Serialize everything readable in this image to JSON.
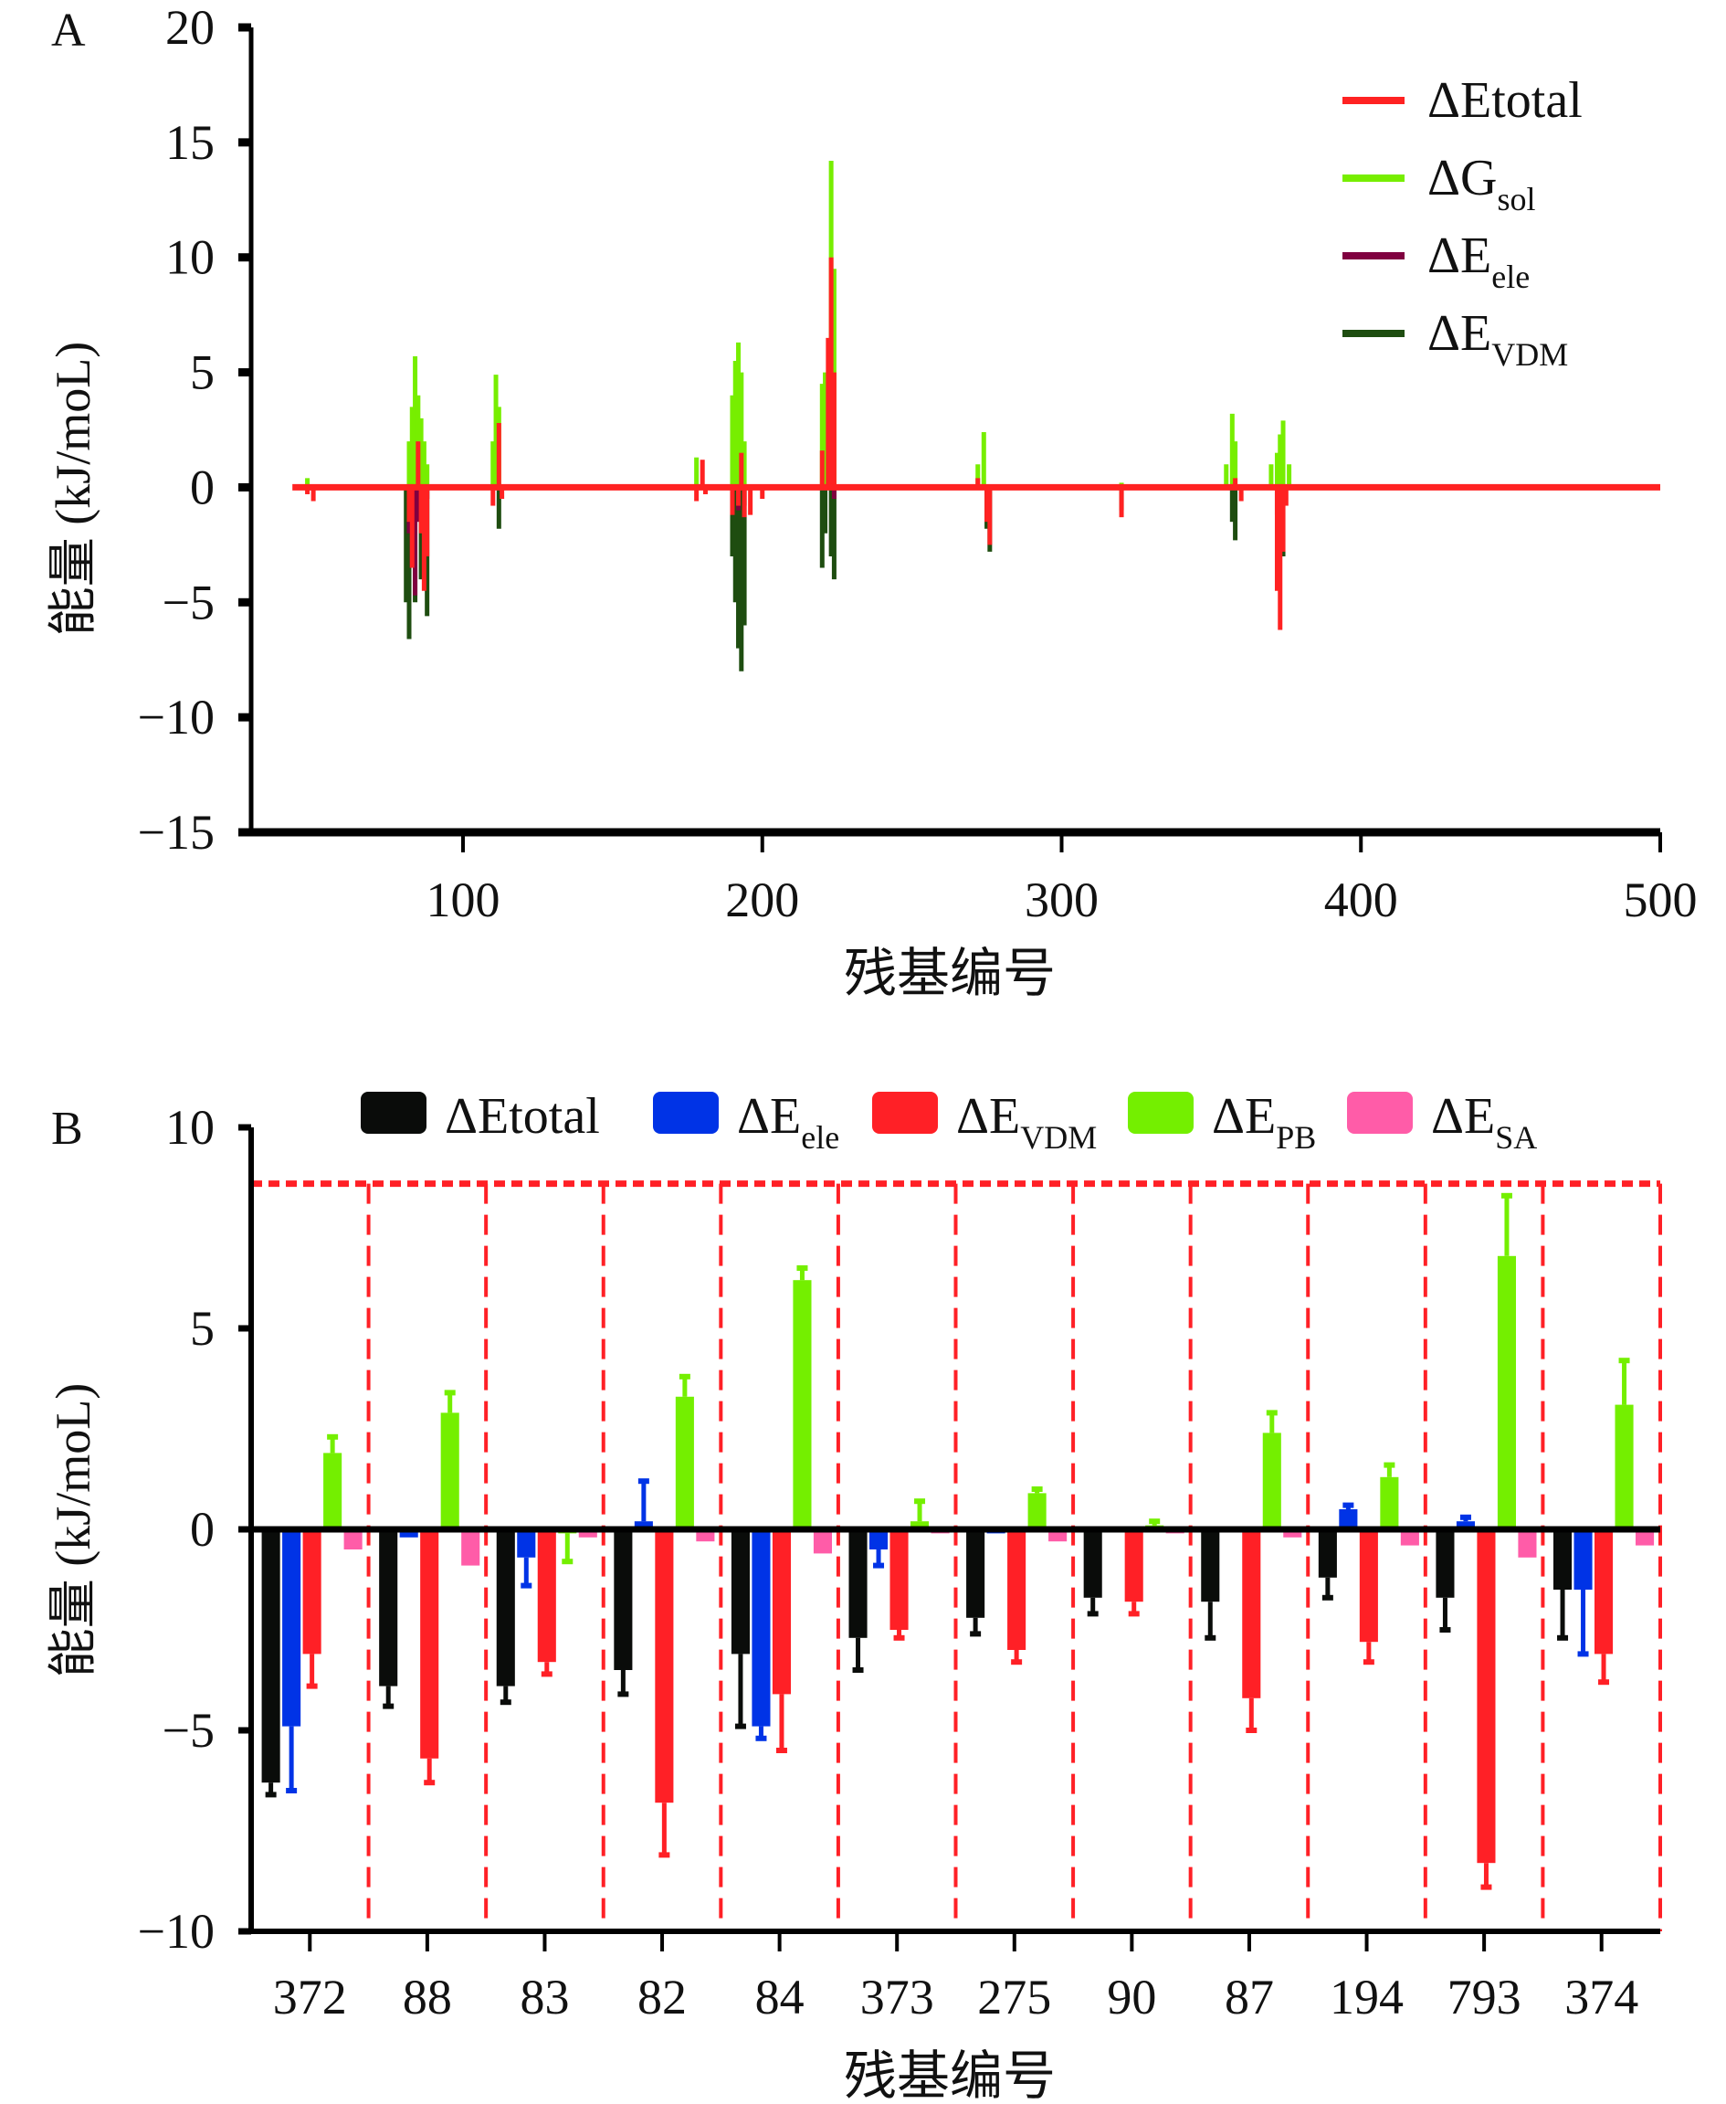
{
  "chart_data": [
    {
      "panel_label": "A",
      "type": "line",
      "title": "",
      "xlabel": "残基编号",
      "ylabel": "能量 (kJ/moL)",
      "xlim": [
        30,
        500
      ],
      "ylim": [
        -15,
        20
      ],
      "xticks": [
        100,
        200,
        300,
        400,
        500
      ],
      "yticks": [
        20,
        15,
        10,
        5,
        0,
        -5,
        -10,
        -15
      ],
      "ytick_labels": [
        "20",
        "15",
        "10",
        "5",
        "0",
        "−5",
        "−10",
        "−15"
      ],
      "legend_position": "top-right",
      "series": [
        {
          "name": "ΔEtotal",
          "label_main": "ΔEtotal",
          "label_sub": "",
          "color": "#ff2222",
          "points": [
            [
              48,
              -0.3
            ],
            [
              50,
              -0.6
            ],
            [
              82,
              -1.5
            ],
            [
              83,
              -3.5
            ],
            [
              85,
              2
            ],
            [
              86,
              -2
            ],
            [
              87,
              -4.5
            ],
            [
              88,
              -3
            ],
            [
              110,
              -0.8
            ],
            [
              112,
              2.8
            ],
            [
              113,
              -0.5
            ],
            [
              178,
              -0.6
            ],
            [
              180,
              1.2
            ],
            [
              181,
              -0.3
            ],
            [
              190,
              -1.2
            ],
            [
              192,
              -0.8
            ],
            [
              193,
              1.5
            ],
            [
              194,
              -1.3
            ],
            [
              196,
              -1.2
            ],
            [
              200,
              -0.5
            ],
            [
              220,
              1.6
            ],
            [
              222,
              6.5
            ],
            [
              223,
              10
            ],
            [
              224,
              5
            ],
            [
              272,
              0.4
            ],
            [
              275,
              -1.5
            ],
            [
              276,
              -2.5
            ],
            [
              320,
              -1.3
            ],
            [
              358,
              0.4
            ],
            [
              360,
              -0.6
            ],
            [
              372,
              -4.5
            ],
            [
              373,
              -6.2
            ],
            [
              374,
              -2.8
            ],
            [
              375,
              -0.8
            ]
          ]
        },
        {
          "name": "ΔGsol",
          "label_main": "ΔG",
          "label_sub": "sol",
          "color": "#77ee00",
          "points": [
            [
              48,
              0.4
            ],
            [
              82,
              2
            ],
            [
              83,
              3.5
            ],
            [
              84,
              5.7
            ],
            [
              85,
              4
            ],
            [
              86,
              3
            ],
            [
              87,
              2
            ],
            [
              88,
              1
            ],
            [
              110,
              2
            ],
            [
              111,
              4.9
            ],
            [
              112,
              3.5
            ],
            [
              178,
              1.3
            ],
            [
              190,
              4
            ],
            [
              191,
              5.5
            ],
            [
              192,
              6.3
            ],
            [
              193,
              5
            ],
            [
              194,
              2
            ],
            [
              220,
              4.5
            ],
            [
              221,
              5
            ],
            [
              223,
              14.2
            ],
            [
              224,
              9.5
            ],
            [
              272,
              1
            ],
            [
              274,
              2.4
            ],
            [
              320,
              0.2
            ],
            [
              355,
              1
            ],
            [
              357,
              3.2
            ],
            [
              358,
              2
            ],
            [
              370,
              1
            ],
            [
              372,
              1.5
            ],
            [
              373,
              2.3
            ],
            [
              374,
              2.9
            ],
            [
              376,
              1
            ]
          ]
        },
        {
          "name": "ΔEele",
          "label_main": "ΔE",
          "label_sub": "ele",
          "color": "#800040",
          "points": [
            [
              82,
              -2
            ],
            [
              83,
              -3.5
            ],
            [
              84,
              -4.7
            ],
            [
              85,
              -1.5
            ],
            [
              88,
              -0.5
            ],
            [
              192,
              -1
            ],
            [
              194,
              -0.8
            ],
            [
              224,
              -0.5
            ],
            [
              372,
              -1.2
            ],
            [
              373,
              -2
            ]
          ]
        },
        {
          "name": "ΔEVDM",
          "label_main": "ΔE",
          "label_sub": "VDM",
          "color": "#1e4d10",
          "points": [
            [
              81,
              -5
            ],
            [
              82,
              -6.6
            ],
            [
              84,
              -5
            ],
            [
              86,
              -4
            ],
            [
              88,
              -5.6
            ],
            [
              112,
              -1.8
            ],
            [
              190,
              -3
            ],
            [
              191,
              -5
            ],
            [
              192,
              -7
            ],
            [
              193,
              -8
            ],
            [
              194,
              -6
            ],
            [
              220,
              -3.5
            ],
            [
              221,
              -2
            ],
            [
              223,
              -3
            ],
            [
              224,
              -4
            ],
            [
              275,
              -1.8
            ],
            [
              276,
              -2.8
            ],
            [
              320,
              -1
            ],
            [
              357,
              -1.5
            ],
            [
              358,
              -2.3
            ],
            [
              374,
              -3
            ]
          ]
        }
      ]
    },
    {
      "panel_label": "B",
      "type": "bar",
      "title": "",
      "xlabel": "残基编号",
      "ylabel": "能量 (kJ/moL)",
      "ylim": [
        -10,
        10
      ],
      "yticks": [
        10,
        5,
        0,
        -5,
        -10
      ],
      "ytick_labels": [
        "10",
        "5",
        "0",
        "−5",
        "−10"
      ],
      "legend_position": "top",
      "categories": [
        "372",
        "88",
        "83",
        "82",
        "84",
        "373",
        "275",
        "90",
        "87",
        "194",
        "793",
        "374"
      ],
      "series": [
        {
          "name": "ΔEtotal",
          "label_main": "ΔEtotal",
          "label_sub": "",
          "color": "#0a0c0a",
          "values": [
            -6.3,
            -3.9,
            -3.9,
            -3.5,
            -3.1,
            -2.7,
            -2.2,
            -1.7,
            -1.8,
            -1.2,
            -1.7,
            -1.5
          ],
          "errors": [
            0.3,
            0.5,
            0.4,
            0.6,
            1.8,
            0.8,
            0.4,
            0.4,
            0.9,
            0.5,
            0.8,
            1.2
          ]
        },
        {
          "name": "ΔEele",
          "label_main": "ΔE",
          "label_sub": "ele",
          "color": "#0033e6",
          "values": [
            -4.9,
            -0.2,
            -0.7,
            0.2,
            -4.9,
            -0.5,
            -0.1,
            0.0,
            0.05,
            0.5,
            0.2,
            -1.5
          ],
          "errors": [
            1.6,
            0.0,
            0.7,
            1.0,
            0.3,
            0.4,
            0.0,
            0.0,
            0.0,
            0.1,
            0.1,
            1.6
          ]
        },
        {
          "name": "ΔEVDM",
          "label_main": "ΔE",
          "label_sub": "VDM",
          "color": "#ff2026",
          "values": [
            -3.1,
            -5.7,
            -3.3,
            -6.8,
            -4.1,
            -2.5,
            -3.0,
            -1.8,
            -4.2,
            -2.8,
            -8.3,
            -3.1
          ],
          "errors": [
            0.8,
            0.6,
            0.3,
            1.3,
            1.4,
            0.2,
            0.3,
            0.3,
            0.8,
            0.5,
            0.6,
            0.7
          ]
        },
        {
          "name": "ΔEPB",
          "label_main": "ΔE",
          "label_sub": "PB",
          "color": "#74ef00",
          "values": [
            1.9,
            2.9,
            -0.1,
            3.3,
            6.2,
            0.2,
            0.9,
            0.1,
            2.4,
            1.3,
            6.8,
            3.1
          ],
          "errors": [
            0.4,
            0.5,
            0.7,
            0.5,
            0.3,
            0.5,
            0.1,
            0.1,
            0.5,
            0.3,
            1.5,
            1.1
          ]
        },
        {
          "name": "ΔESA",
          "label_main": "ΔE",
          "label_sub": "SA",
          "color": "#ff5ca8",
          "values": [
            -0.5,
            -0.9,
            -0.2,
            -0.3,
            -0.6,
            -0.1,
            -0.3,
            -0.1,
            -0.2,
            -0.4,
            -0.7,
            -0.4
          ],
          "errors": [
            0,
            0,
            0,
            0,
            0,
            0,
            0,
            0,
            0,
            0,
            0,
            0
          ]
        }
      ],
      "annotations": "red dashed boxes enclosing each residue group"
    }
  ]
}
